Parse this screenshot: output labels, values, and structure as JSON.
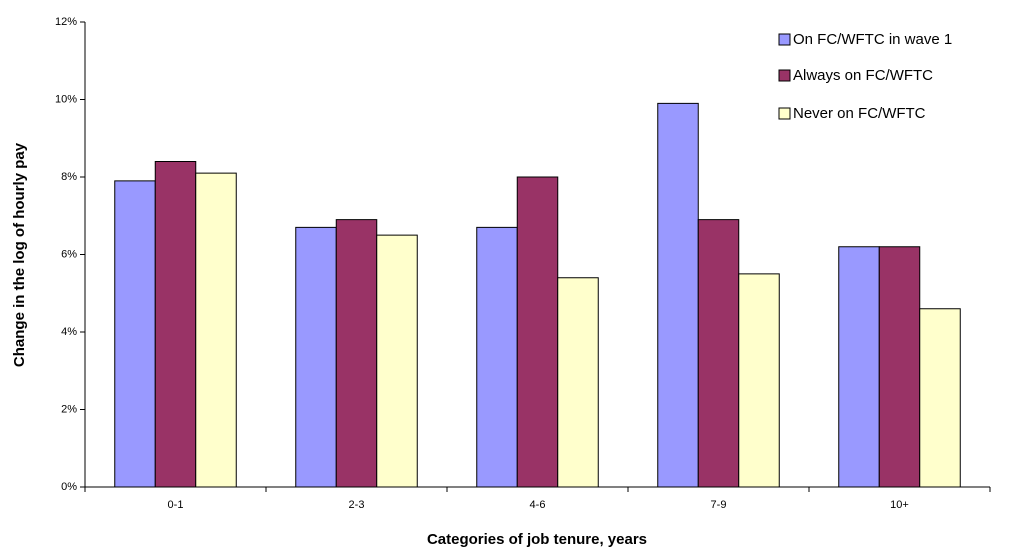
{
  "chart_data": {
    "type": "bar",
    "x_label": "Categories of job tenure, years",
    "y_label": "Change in the log of hourly pay",
    "categories": [
      "0-1",
      "2-3",
      "4-6",
      "7-9",
      "10+"
    ],
    "series": [
      {
        "name": "On FC/WFTC in wave 1",
        "color": "#9999ff",
        "values": [
          7.9,
          6.7,
          6.7,
          9.9,
          6.2
        ]
      },
      {
        "name": "Always on FC/WFTC",
        "color": "#993366",
        "values": [
          8.4,
          6.9,
          8.0,
          6.9,
          6.2
        ]
      },
      {
        "name": "Never on FC/WFTC",
        "color": "#ffffcc",
        "values": [
          8.1,
          6.5,
          5.4,
          5.5,
          4.6
        ]
      }
    ],
    "ylim": [
      0,
      12
    ],
    "yticks": [
      {
        "value": 0,
        "label": "0%"
      },
      {
        "value": 2,
        "label": "2%"
      },
      {
        "value": 4,
        "label": "4%"
      },
      {
        "value": 6,
        "label": "6%"
      },
      {
        "value": 8,
        "label": "8%"
      },
      {
        "value": 10,
        "label": "10%"
      },
      {
        "value": 12,
        "label": "12%"
      }
    ],
    "grid": false
  }
}
